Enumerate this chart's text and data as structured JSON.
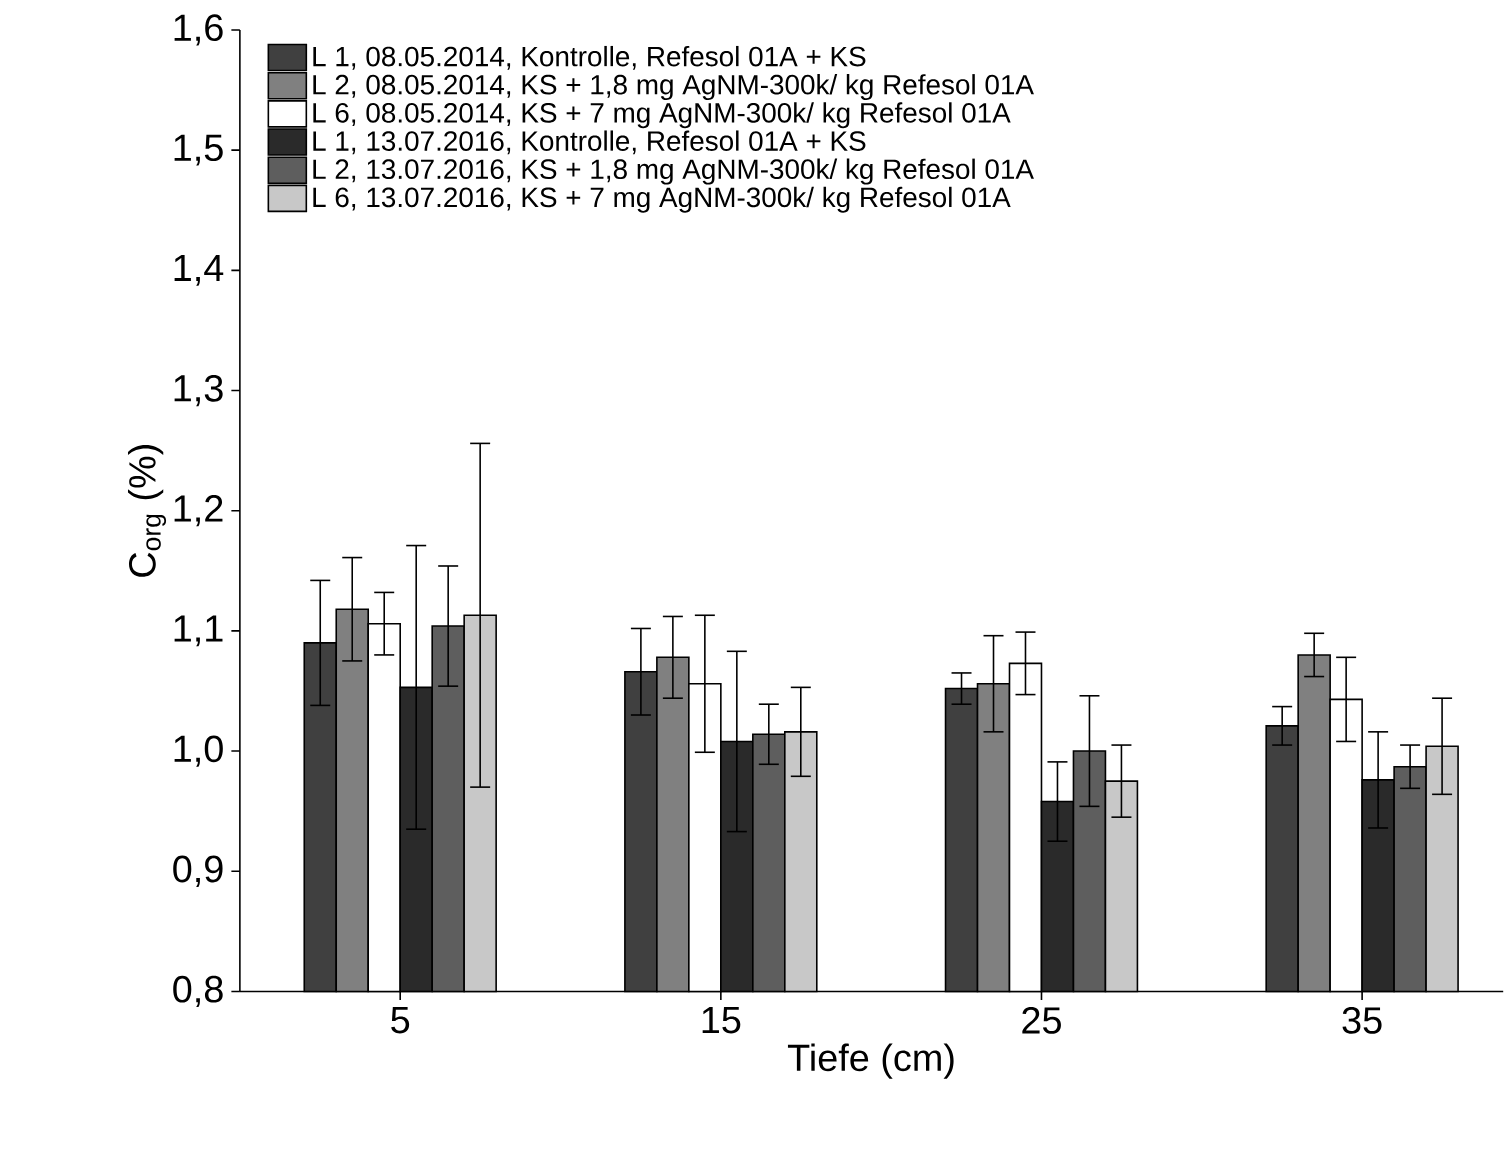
{
  "chart_data": {
    "type": "bar",
    "xlabel": "Tiefe (cm)",
    "ylabel": "C$_{org}$ (%)",
    "categories": [
      "5",
      "15",
      "25",
      "35"
    ],
    "ylim": [
      0.8,
      1.6
    ],
    "yticks": [
      {
        "value": 0.8,
        "label": "0,8"
      },
      {
        "value": 0.9,
        "label": "0,9"
      },
      {
        "value": 1.0,
        "label": "1,0"
      },
      {
        "value": 1.1,
        "label": "1,1"
      },
      {
        "value": 1.2,
        "label": "1,2"
      },
      {
        "value": 1.3,
        "label": "1,3"
      },
      {
        "value": 1.4,
        "label": "1,4"
      },
      {
        "value": 1.5,
        "label": "1,5"
      },
      {
        "value": 1.6,
        "label": "1,6"
      }
    ],
    "legend": "top left",
    "series": [
      {
        "name": "L 1, 08.05.2014, Kontrolle, Refesol 01A + KS",
        "color": "#404040",
        "values": [
          1.09,
          1.066,
          1.052,
          1.021
        ],
        "errors": [
          0.052,
          0.036,
          0.013,
          0.016
        ]
      },
      {
        "name": "L 2, 08.05.2014, KS + 1,8 mg AgNM-300k/ kg Refesol 01A",
        "color": "#808080",
        "values": [
          1.118,
          1.078,
          1.056,
          1.08
        ],
        "errors": [
          0.043,
          0.034,
          0.04,
          0.018
        ]
      },
      {
        "name": "L 6, 08.05.2014, KS + 7 mg AgNM-300k/ kg Refesol 01A",
        "color": "#ffffff",
        "values": [
          1.106,
          1.056,
          1.073,
          1.043
        ],
        "errors": [
          0.026,
          0.057,
          0.026,
          0.035
        ]
      },
      {
        "name": "L 1, 13.07.2016, Kontrolle, Refesol 01A + KS",
        "color": "#2a2a2a",
        "values": [
          1.053,
          1.008,
          0.958,
          0.976
        ],
        "errors": [
          0.118,
          0.075,
          0.033,
          0.04
        ]
      },
      {
        "name": "L 2, 13.07.2016, KS + 1,8 mg AgNM-300k/ kg Refesol 01A",
        "color": "#5e5e5e",
        "values": [
          1.104,
          1.014,
          1.0,
          0.987
        ],
        "errors": [
          0.05,
          0.025,
          0.046,
          0.018
        ]
      },
      {
        "name": "L 6, 13.07.2016, KS + 7 mg AgNM-300k/ kg Refesol 01A",
        "color": "#c8c8c8",
        "values": [
          1.113,
          1.016,
          0.975,
          1.004
        ],
        "errors": [
          0.143,
          0.037,
          0.03,
          0.04
        ]
      }
    ]
  }
}
